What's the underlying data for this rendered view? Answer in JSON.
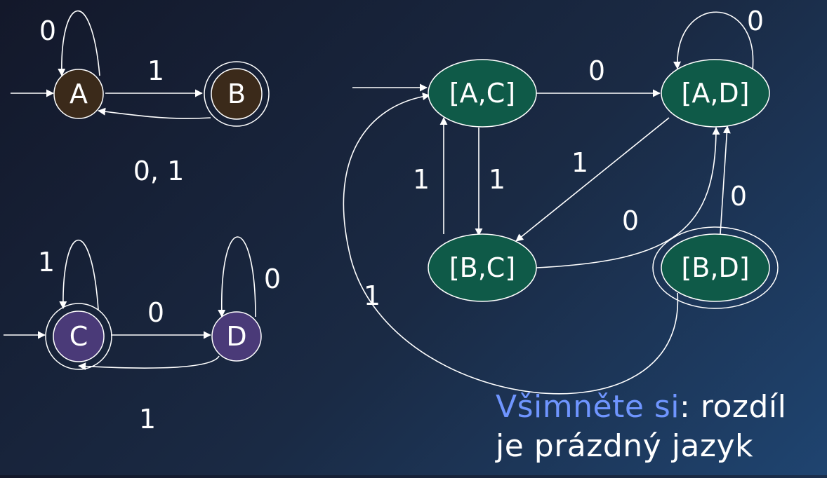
{
  "colors": {
    "state_a_b": "#3b2a1a",
    "state_c_d": "#4a3a78",
    "product_state": "#0f5a48",
    "highlight": "#6f95ff",
    "text": "#ffffff"
  },
  "automaton1": {
    "states": [
      "A",
      "B"
    ],
    "labels": {
      "a_loop": "0",
      "a_to_b": "1",
      "b_to_a": "0, 1"
    }
  },
  "automaton2": {
    "states": [
      "C",
      "D"
    ],
    "labels": {
      "c_loop": "1",
      "c_to_d": "0",
      "d_loop": "0",
      "d_to_c": "1"
    }
  },
  "product": {
    "states": [
      "[A,C]",
      "[A,D]",
      "[B,C]",
      "[B,D]"
    ],
    "labels": {
      "ac_to_ad": "0",
      "ad_loop": "0",
      "ad_to_bc": "1",
      "ac_to_bc": "1",
      "bc_to_ac": "1",
      "bc_to_ad": "0",
      "bd_to_ad": "0",
      "bd_to_ac": "1"
    }
  },
  "note": {
    "highlight": "Všimněte si",
    "line1_rest": ": rozdíl",
    "line2": "je prázdný jazyk"
  }
}
